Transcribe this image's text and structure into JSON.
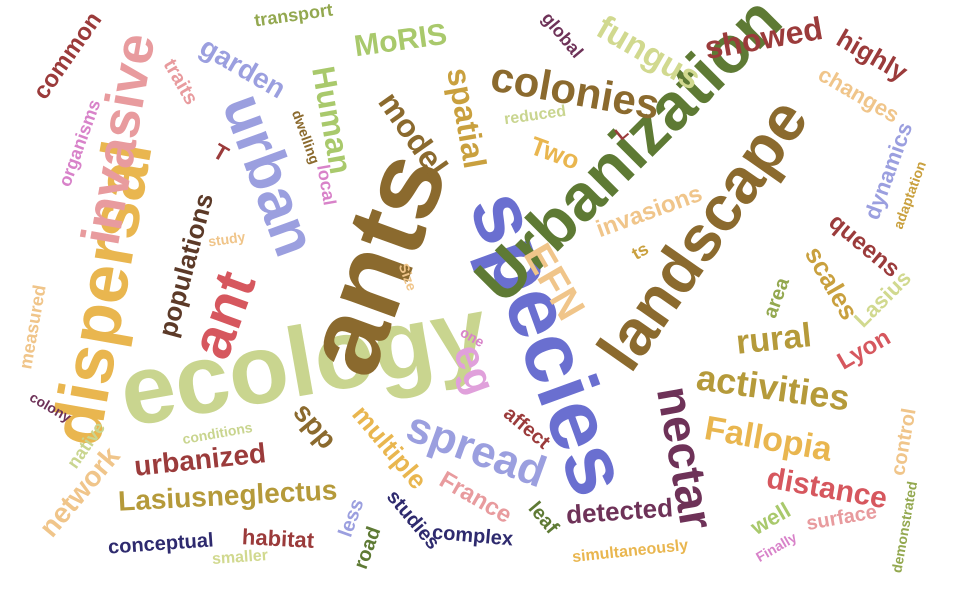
{
  "words": [
    {
      "text": "ecology",
      "color": "#c9d58f"
    },
    {
      "text": "species",
      "color": "#6a6fd0"
    },
    {
      "text": "ants",
      "color": "#8b6a2e"
    },
    {
      "text": "Urbanization",
      "color": "#5e7a34"
    },
    {
      "text": "landscape",
      "color": "#8b6a2e"
    },
    {
      "text": "dispersal",
      "color": "#e9b64f"
    },
    {
      "text": "invasive",
      "color": "#e89b9e"
    },
    {
      "text": "urban",
      "color": "#9b9fdf"
    },
    {
      "text": "ant",
      "color": "#d6575e"
    },
    {
      "text": "spread",
      "color": "#9b9fdf"
    },
    {
      "text": "nectar",
      "color": "#6e3258"
    },
    {
      "text": "colonies",
      "color": "#8b6a2e"
    },
    {
      "text": "activities",
      "color": "#b59a3a"
    },
    {
      "text": "Human",
      "color": "#a9c96c"
    },
    {
      "text": "model",
      "color": "#8b6a2e"
    },
    {
      "text": "spatial",
      "color": "#c9a03e"
    },
    {
      "text": "fungus",
      "color": "#d1d98f"
    },
    {
      "text": "showed",
      "color": "#9b3b3b"
    },
    {
      "text": "highly",
      "color": "#9b3b3b"
    },
    {
      "text": "changes",
      "color": "#f0c58a"
    },
    {
      "text": "MoRIS",
      "color": "#a9c96c"
    },
    {
      "text": "transport",
      "color": "#93a84f"
    },
    {
      "text": "garden",
      "color": "#9b9fdf"
    },
    {
      "text": "traits",
      "color": "#e89b9e"
    },
    {
      "text": "common",
      "color": "#9b3b3b"
    },
    {
      "text": "organisms",
      "color": "#d882c9"
    },
    {
      "text": "global",
      "color": "#6e3258"
    },
    {
      "text": "reduced",
      "color": "#c9d58f"
    },
    {
      "text": "Two",
      "color": "#e9b64f"
    },
    {
      "text": "dwelling",
      "color": "#8b6a2e"
    },
    {
      "text": "local",
      "color": "#d882c9"
    },
    {
      "text": "T",
      "color": "#9b3b3b"
    },
    {
      "text": "populations",
      "color": "#5c3a28"
    },
    {
      "text": "study",
      "color": "#f0c58a"
    },
    {
      "text": "EFN",
      "color": "#f0c58a"
    },
    {
      "text": "eg",
      "color": "#e0a0db"
    },
    {
      "text": "invasions",
      "color": "#f0c58a"
    },
    {
      "text": "ts",
      "color": "#c9a03e"
    },
    {
      "text": "L",
      "color": "#9b3b3b"
    },
    {
      "text": "dynamics",
      "color": "#9b9fdf"
    },
    {
      "text": "adaptation",
      "color": "#c9a03e"
    },
    {
      "text": "queens",
      "color": "#9b3b3b"
    },
    {
      "text": "scales",
      "color": "#c9a03e"
    },
    {
      "text": "area",
      "color": "#93a84f"
    },
    {
      "text": "Lasius",
      "color": "#d1d98f"
    },
    {
      "text": "rural",
      "color": "#b59a3a"
    },
    {
      "text": "Lyon",
      "color": "#d6575e"
    },
    {
      "text": "measured",
      "color": "#f0c58a"
    },
    {
      "text": "Size",
      "color": "#f0c58a"
    },
    {
      "text": "one",
      "color": "#d882c9"
    },
    {
      "text": "colony",
      "color": "#6e3258"
    },
    {
      "text": "native",
      "color": "#c9d58f"
    },
    {
      "text": "conditions",
      "color": "#c9d58f"
    },
    {
      "text": "spp",
      "color": "#8b6a2e"
    },
    {
      "text": "multiple",
      "color": "#e9b64f"
    },
    {
      "text": "affect",
      "color": "#9b3b3b"
    },
    {
      "text": "Fallopia",
      "color": "#e9b64f"
    },
    {
      "text": "control",
      "color": "#f0c58a"
    },
    {
      "text": "network",
      "color": "#f0c58a"
    },
    {
      "text": "urbanized",
      "color": "#9b3b3b"
    },
    {
      "text": "France",
      "color": "#e89b9e"
    },
    {
      "text": "distance",
      "color": "#d6575e"
    },
    {
      "text": "Lasiusneglectus",
      "color": "#b59a3a"
    },
    {
      "text": "less",
      "color": "#9b9fdf"
    },
    {
      "text": "studies",
      "color": "#2e2a6e"
    },
    {
      "text": "leaf",
      "color": "#5e7a34"
    },
    {
      "text": "detected",
      "color": "#6e3258"
    },
    {
      "text": "well",
      "color": "#a9c96c"
    },
    {
      "text": "surface",
      "color": "#e89b9e"
    },
    {
      "text": "conceptual",
      "color": "#2e2a6e"
    },
    {
      "text": "habitat",
      "color": "#9b3b3b"
    },
    {
      "text": "road",
      "color": "#5e7a34"
    },
    {
      "text": "complex",
      "color": "#2e2a6e"
    },
    {
      "text": "smaller",
      "color": "#d1d98f"
    },
    {
      "text": "simultaneously",
      "color": "#e9b64f"
    },
    {
      "text": "Finally",
      "color": "#d882c9"
    },
    {
      "text": "demonstrated",
      "color": "#93a84f"
    }
  ]
}
